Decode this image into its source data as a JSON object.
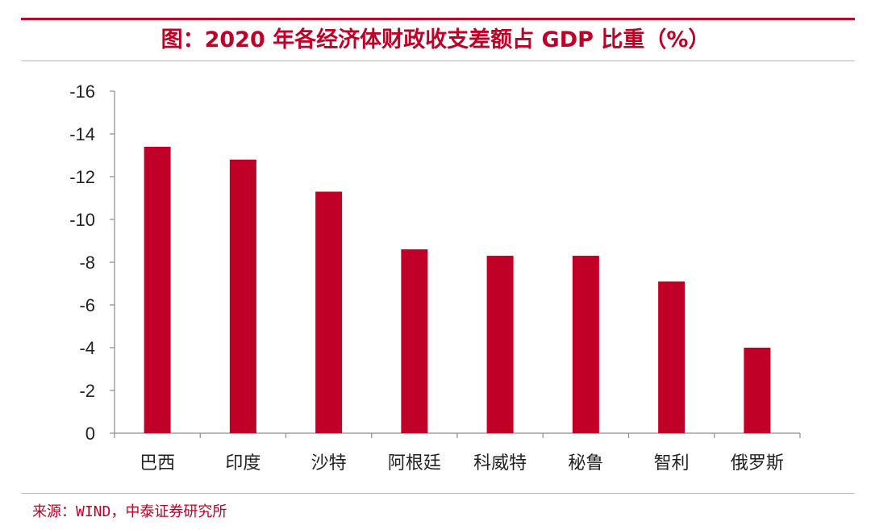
{
  "title": "图：2020 年各经济体财政收支差额占 GDP 比重（%）",
  "source": "来源：WIND，中泰证券研究所",
  "colors": {
    "accent": "#c00026",
    "bar": "#c00026",
    "rule_light": "#e9a6b2",
    "text": "#222222"
  },
  "chart_data": {
    "type": "bar",
    "title": "图：2020 年各经济体财政收支差额占 GDP 比重（%）",
    "xlabel": "",
    "ylabel": "",
    "categories": [
      "巴西",
      "印度",
      "沙特",
      "阿根廷",
      "科威特",
      "秘鲁",
      "智利",
      "俄罗斯"
    ],
    "values": [
      -13.4,
      -12.8,
      -11.3,
      -8.6,
      -8.3,
      -8.3,
      -7.1,
      -4.0
    ],
    "ylim": [
      -16,
      0
    ],
    "y_axis_reversed": true,
    "y_ticks": [
      -16,
      -14,
      -12,
      -10,
      -8,
      -6,
      -4,
      -2,
      0
    ],
    "grid": false,
    "legend": "none"
  }
}
